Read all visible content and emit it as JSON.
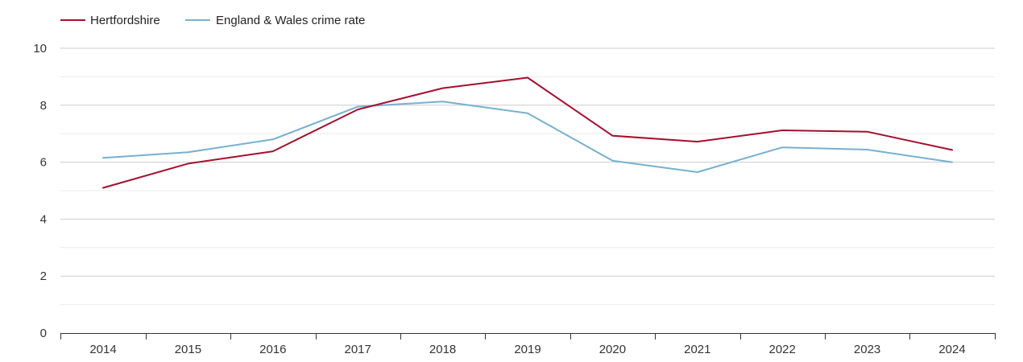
{
  "chart_data": {
    "type": "line",
    "title": "",
    "xlabel": "",
    "ylabel": "",
    "categories": [
      "2014",
      "2015",
      "2016",
      "2017",
      "2018",
      "2019",
      "2020",
      "2021",
      "2022",
      "2023",
      "2024"
    ],
    "ylim": [
      0,
      10
    ],
    "yticks": [
      "0",
      "2",
      "4",
      "6",
      "8",
      "10"
    ],
    "grid": true,
    "legend_position": "top-left",
    "series": [
      {
        "name": "Hertfordshire",
        "color": "#a50f2d",
        "values": [
          5.1,
          5.95,
          6.38,
          7.85,
          8.6,
          8.97,
          6.93,
          6.72,
          7.12,
          7.07,
          6.43
        ]
      },
      {
        "name": "England & Wales crime rate",
        "color": "#77b0d0",
        "values": [
          6.15,
          6.35,
          6.8,
          7.95,
          8.13,
          7.72,
          6.05,
          5.65,
          6.52,
          6.44,
          6.0
        ]
      }
    ]
  }
}
